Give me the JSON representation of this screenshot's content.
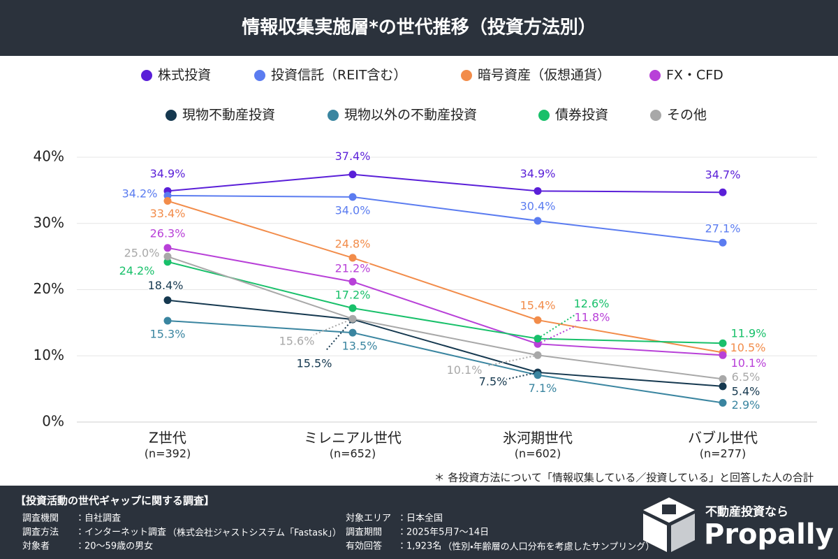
{
  "chart_data": {
    "type": "line",
    "title": "情報収集実施層*の世代推移（投資方法別）",
    "categories": [
      "Z世代",
      "ミレニアル世代",
      "氷河期世代",
      "バブル世代"
    ],
    "category_counts": [
      "(n=392)",
      "(n=652)",
      "(n=602)",
      "(n=277)"
    ],
    "ylim": [
      0,
      40
    ],
    "yticks": [
      {
        "value": 0,
        "label": "0%"
      },
      {
        "value": 10,
        "label": "10%"
      },
      {
        "value": 20,
        "label": "20%"
      },
      {
        "value": 30,
        "label": "30%"
      },
      {
        "value": 40,
        "label": "40%"
      }
    ],
    "grid": true,
    "series": [
      {
        "name": "株式投資",
        "color": "#5a1fd8",
        "values": [
          34.9,
          37.4,
          34.9,
          34.7
        ],
        "value_labels": [
          "34.9%",
          "37.4%",
          "34.9%",
          "34.7%"
        ]
      },
      {
        "name": "投資信託（REIT含む）",
        "color": "#5b7cf0",
        "values": [
          34.2,
          34.0,
          30.4,
          27.1
        ],
        "value_labels": [
          "34.2%",
          "34.0%",
          "30.4%",
          "27.1%"
        ]
      },
      {
        "name": "暗号資産（仮想通貨）",
        "color": "#f28c4a",
        "values": [
          33.4,
          24.8,
          15.4,
          10.5
        ],
        "value_labels": [
          "33.4%",
          "24.8%",
          "15.4%",
          "10.5%"
        ]
      },
      {
        "name": "FX・CFD",
        "color": "#b840d8",
        "values": [
          26.3,
          21.2,
          11.8,
          10.1
        ],
        "value_labels": [
          "26.3%",
          "21.2%",
          "11.8%",
          "10.1%"
        ]
      },
      {
        "name": "現物不動産投資",
        "color": "#15384f",
        "values": [
          18.4,
          15.5,
          7.5,
          5.4
        ],
        "value_labels": [
          "18.4%",
          "15.5%",
          "7.5%",
          "5.4%"
        ]
      },
      {
        "name": "現物以外の不動産投資",
        "color": "#3a85a0",
        "values": [
          15.3,
          13.5,
          7.1,
          2.9
        ],
        "value_labels": [
          "15.3%",
          "13.5%",
          "7.1%",
          "2.9%"
        ]
      },
      {
        "name": "債券投資",
        "color": "#18c06a",
        "values": [
          24.2,
          17.2,
          12.6,
          11.9
        ],
        "value_labels": [
          "24.2%",
          "17.2%",
          "12.6%",
          "11.9%"
        ]
      },
      {
        "name": "その他",
        "color": "#a8a8a8",
        "values": [
          25.0,
          15.6,
          10.1,
          6.5
        ],
        "value_labels": [
          "25.0%",
          "15.6%",
          "10.1%",
          "6.5%"
        ]
      }
    ],
    "footnote": "＊ 各投資方法について「情報収集している／投資している」と回答した人の合計"
  },
  "survey": {
    "heading": "【投資活動の世代ギャップに関する調査】",
    "items": [
      {
        "label": "調査機関",
        "value": "：自社調査"
      },
      {
        "label": "調査方法",
        "value": "：インターネット調査",
        "note": "（株式会社ジャストシステム「Fastask」）"
      },
      {
        "label": "対象者",
        "value": "：20〜59歳の男女"
      },
      {
        "label": "対象エリア",
        "value": "：日本全国"
      },
      {
        "label": "調査期間",
        "value": "：2025年5月7〜14日"
      },
      {
        "label": "有効回答",
        "value": "：1,923名",
        "note": "（性別・年齢層の人口分布を考慮したサンプリング）"
      }
    ]
  },
  "logo": {
    "tagline": "不動産投資なら",
    "name": "Propally"
  }
}
